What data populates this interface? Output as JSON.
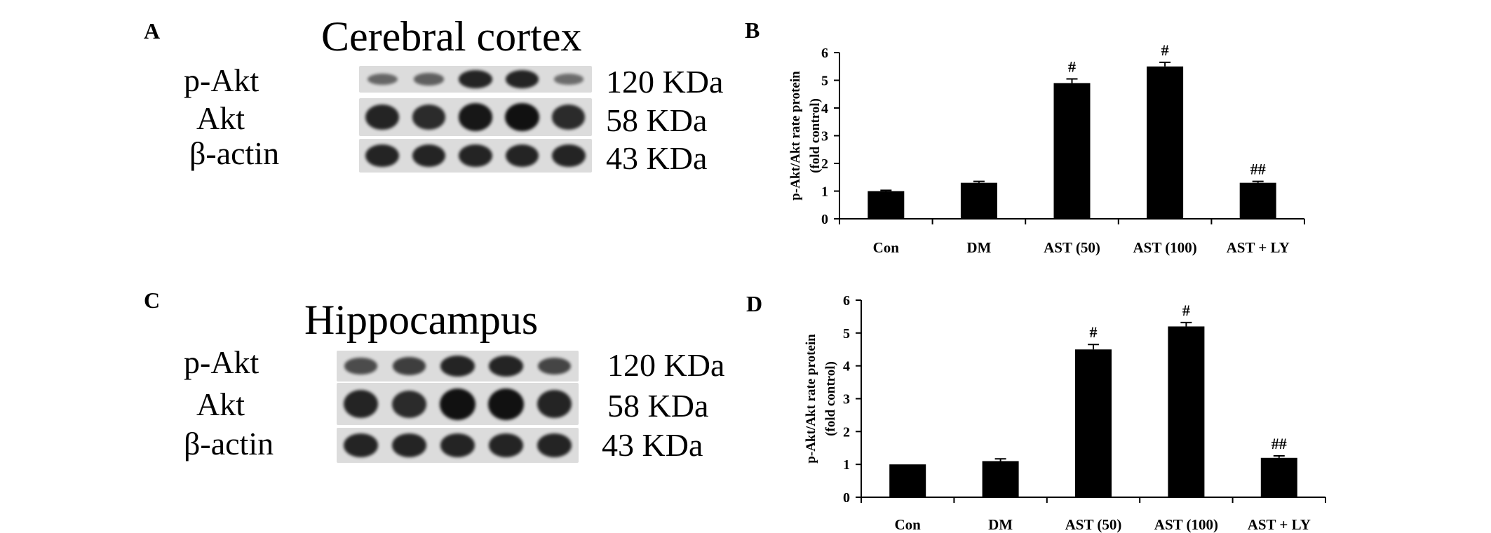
{
  "colors": {
    "bar": "#000000",
    "axis": "#000000",
    "membrane": "#dcdcdc",
    "band": "#111111"
  },
  "panel_a": {
    "letter": "A",
    "title": "Cerebral cortex",
    "rows": [
      {
        "label": "p-Akt",
        "size": "120 KDa",
        "intensity": [
          0.35,
          0.4,
          0.85,
          0.85,
          0.3
        ]
      },
      {
        "label": "Akt",
        "size": "58 KDa",
        "intensity": [
          0.85,
          0.8,
          0.95,
          1.0,
          0.8
        ]
      },
      {
        "label": "β-actin",
        "size": "43 KDa",
        "intensity": [
          0.85,
          0.85,
          0.85,
          0.85,
          0.85
        ]
      }
    ]
  },
  "panel_c": {
    "letter": "C",
    "title": "Hippocampus",
    "rows": [
      {
        "label": "p-Akt",
        "size": "120 KDa",
        "intensity": [
          0.55,
          0.65,
          0.85,
          0.85,
          0.6
        ]
      },
      {
        "label": "Akt",
        "size": "58 KDa",
        "intensity": [
          0.85,
          0.8,
          1.0,
          1.0,
          0.85
        ]
      },
      {
        "label": "β-actin",
        "size": "43 KDa",
        "intensity": [
          0.85,
          0.85,
          0.85,
          0.85,
          0.85
        ]
      }
    ]
  },
  "chart_data": [
    {
      "panel": "B",
      "type": "bar",
      "title": "",
      "xlabel": "",
      "ylabel": [
        "p-Akt/Akt rate protein",
        "(fold control)"
      ],
      "categories": [
        "Con",
        "DM",
        "AST (50)",
        "AST (100)",
        "AST + LY"
      ],
      "values": [
        1.0,
        1.3,
        4.9,
        5.5,
        1.3
      ],
      "errors": [
        0.03,
        0.05,
        0.15,
        0.15,
        0.05
      ],
      "annotations": [
        "",
        "",
        "#",
        "#",
        "##"
      ],
      "ylim": [
        0,
        6
      ],
      "yticks": [
        0,
        1,
        2,
        3,
        4,
        5,
        6
      ],
      "grid": false
    },
    {
      "panel": "D",
      "type": "bar",
      "title": "",
      "xlabel": "",
      "ylabel": [
        "p-Akt/Akt rate protein",
        "(fold control)"
      ],
      "categories": [
        "Con",
        "DM",
        "AST (50)",
        "AST (100)",
        "AST + LY"
      ],
      "values": [
        1.0,
        1.1,
        4.5,
        5.2,
        1.2
      ],
      "errors": [
        0.0,
        0.07,
        0.15,
        0.12,
        0.06
      ],
      "annotations": [
        "",
        "",
        "#",
        "#",
        "##"
      ],
      "ylim": [
        0,
        6
      ],
      "yticks": [
        0,
        1,
        2,
        3,
        4,
        5,
        6
      ],
      "grid": false
    }
  ]
}
